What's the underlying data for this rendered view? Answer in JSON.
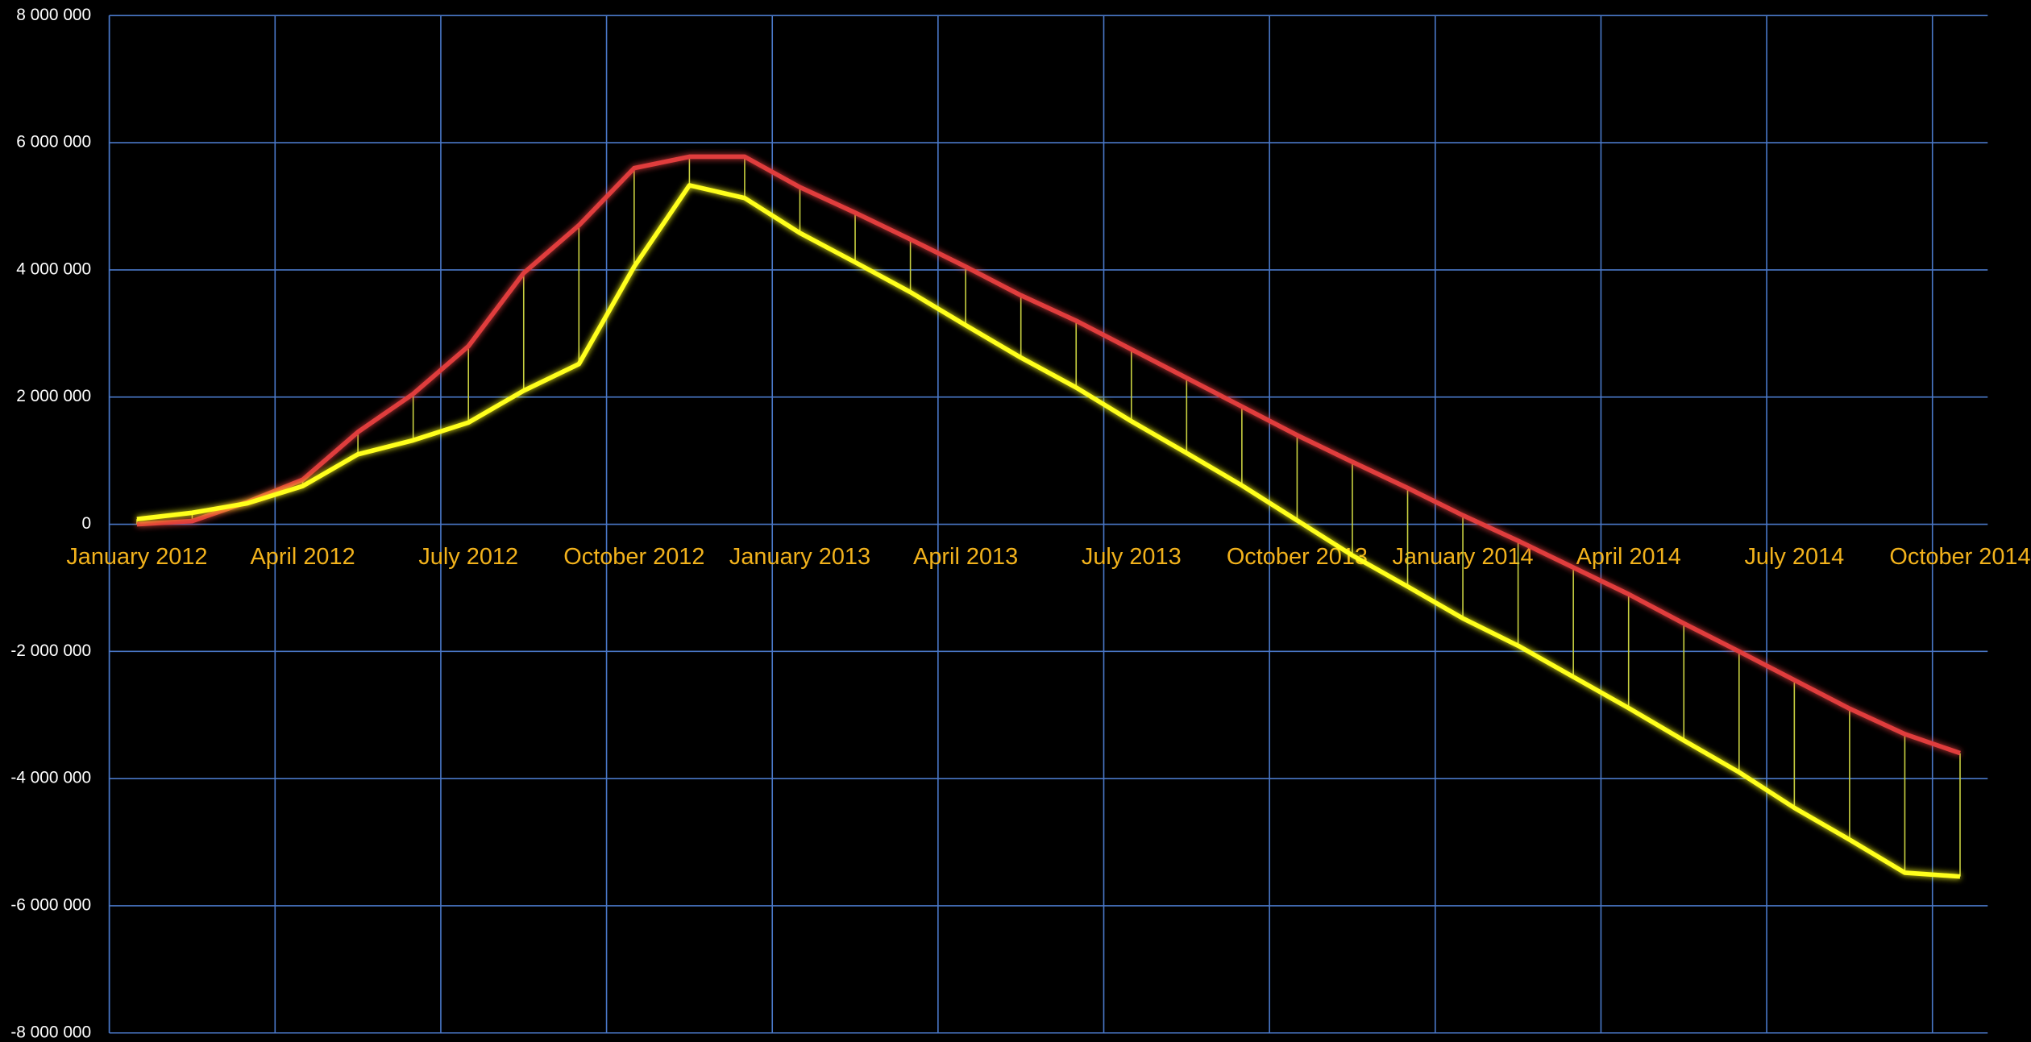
{
  "chart_data": {
    "type": "line",
    "categories": [
      "January 2012",
      null,
      null,
      "April 2012",
      null,
      null,
      "July 2012",
      null,
      null,
      "October 2012",
      null,
      null,
      "January 2013",
      null,
      null,
      "April 2013",
      null,
      null,
      "July 2013",
      null,
      null,
      "October 2013",
      null,
      null,
      "January 2014",
      null,
      null,
      "April 2014",
      null,
      null,
      "July 2014",
      null,
      null,
      "October 2014"
    ],
    "series": [
      {
        "color": "#e03c3c",
        "values": [
          0,
          50000,
          350000,
          700000,
          1450000,
          2050000,
          2800000,
          3950000,
          4700000,
          5600000,
          5780000,
          5780000,
          5300000,
          4900000,
          4480000,
          4050000,
          3600000,
          3200000,
          2750000,
          2300000,
          1850000,
          1400000,
          980000,
          570000,
          140000,
          -260000,
          -680000,
          -1100000,
          -1560000,
          -2000000,
          -2450000,
          -2900000,
          -3300000,
          -3600000
        ]
      },
      {
        "color": "#ffff1a",
        "values": [
          80000,
          180000,
          330000,
          600000,
          1100000,
          1320000,
          1600000,
          2100000,
          2520000,
          4050000,
          5330000,
          5130000,
          4580000,
          4120000,
          3650000,
          3130000,
          2620000,
          2150000,
          1620000,
          1120000,
          610000,
          60000,
          -490000,
          -980000,
          -1480000,
          -1910000,
          -2400000,
          -2890000,
          -3400000,
          -3900000,
          -4460000,
          -4960000,
          -5480000,
          -5540000
        ]
      }
    ],
    "ylim": [
      -8000000,
      8000000
    ],
    "yticks": [
      {
        "value": -8000000,
        "label": "-8 000 000"
      },
      {
        "value": -6000000,
        "label": "-6 000 000"
      },
      {
        "value": -4000000,
        "label": "-4 000 000"
      },
      {
        "value": -2000000,
        "label": "-2 000 000"
      },
      {
        "value": 0,
        "label": "0"
      },
      {
        "value": 2000000,
        "label": "2 000 000"
      },
      {
        "value": 4000000,
        "label": "4 000 000"
      },
      {
        "value": 6000000,
        "label": "6 000 000"
      },
      {
        "value": 8000000,
        "label": "8 000 000"
      }
    ],
    "grid": true,
    "grid_color": "#4a78c8",
    "zero_line_color": "#1fd04a",
    "high_low_color": "#c8d040"
  }
}
